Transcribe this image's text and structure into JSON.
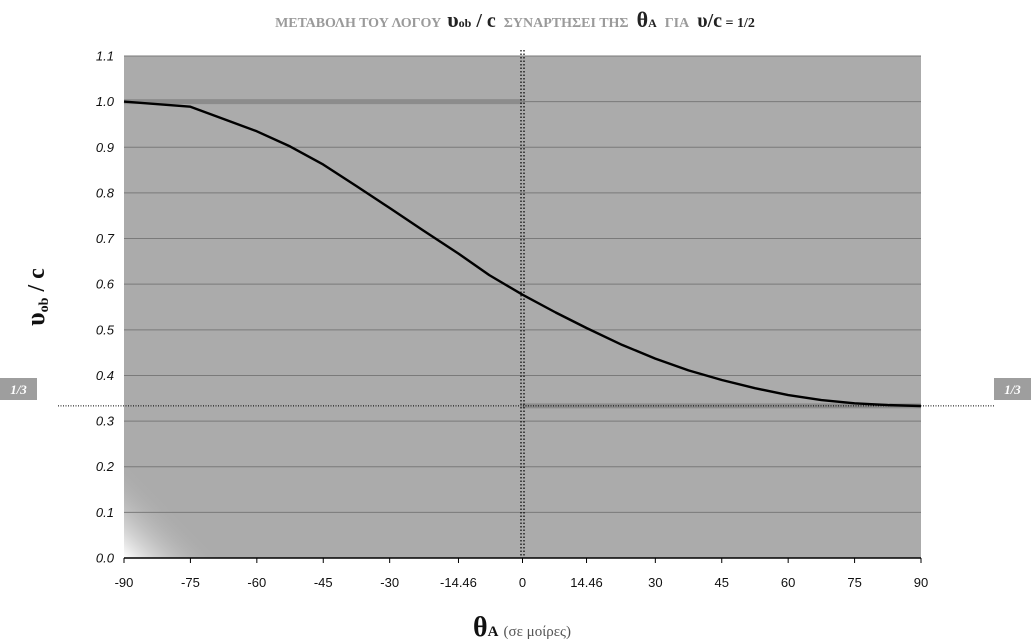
{
  "title": {
    "prefix": "ΜΕΤΑΒΟΛΗ ΤΟΥ ΛΟΓΟΥ",
    "ratio_main": "υ",
    "ratio_sub": "ob",
    "ratio_rest": " / c",
    "middle": "ΣΥΝΑΡΤΗΣΕΙ ΤΗΣ",
    "theta": "θ",
    "theta_sub": "A",
    "for_word": "ΓΙΑ",
    "ratio2": "υ/c",
    "ratio2_value": " = 1/2"
  },
  "y_axis_label": {
    "main": "υ",
    "sub": "ob",
    "rest": " / c"
  },
  "x_axis_label": {
    "theta": "θ",
    "sub": "A",
    "unit": "(σε μοίρες)"
  },
  "markers": {
    "left": "1/3",
    "right": "1/3"
  },
  "colors": {
    "plot_bg": "#ababab",
    "grid": "#7a7a7a",
    "curve": "#000000",
    "asymptote": "#8c8c8c",
    "marker_box": "#9e9e9e"
  },
  "chart_data": {
    "type": "line",
    "title": "ΜΕΤΑΒΟΛΗ ΤΟΥ ΛΟΓΟΥ υob / c ΣΥΝΑΡΤΗΣΕΙ ΤΗΣ θA ΓΙΑ υ/c = 1/2",
    "xlabel": "θA (σε μοίρες)",
    "ylabel": "υob / c",
    "xlim": [
      -90,
      90
    ],
    "ylim": [
      0.0,
      1.1
    ],
    "grid": true,
    "x_ticks": [
      -90,
      -75,
      -60,
      -45,
      -30,
      -14.46,
      0,
      14.46,
      30,
      45,
      60,
      75,
      90
    ],
    "x_tick_labels": [
      "-90",
      "-75",
      "-60",
      "-45",
      "-30",
      "-14.46",
      "0",
      "14.46",
      "30",
      "45",
      "60",
      "75",
      "90"
    ],
    "y_ticks": [
      0.0,
      0.1,
      0.2,
      0.3,
      0.4,
      0.5,
      0.6,
      0.7,
      0.8,
      0.9,
      1.0,
      1.1
    ],
    "y_tick_labels": [
      "0.0",
      "0.1",
      "0.2",
      "0.3",
      "0.4",
      "0.5",
      "0.6",
      "0.7",
      "0.8",
      "0.9",
      "1.0",
      "1.1"
    ],
    "series": [
      {
        "x": [
          -90,
          -75,
          -67.5,
          -60,
          -52.5,
          -45,
          -37.5,
          -30,
          -22.5,
          -14.46,
          -7.5,
          0,
          7.5,
          14.46,
          22.5,
          30,
          37.5,
          45,
          52.5,
          60,
          67.5,
          75,
          82.5,
          90
        ],
        "y": [
          1.0,
          0.989,
          0.962,
          0.935,
          0.902,
          0.862,
          0.815,
          0.767,
          0.718,
          0.667,
          0.62,
          0.577,
          0.538,
          0.504,
          0.467,
          0.437,
          0.411,
          0.39,
          0.372,
          0.357,
          0.346,
          0.339,
          0.335,
          0.333
        ]
      }
    ],
    "reference_lines": [
      {
        "kind": "horizontal",
        "y": 1.0,
        "x_from": -90,
        "x_to": 0
      },
      {
        "kind": "horizontal",
        "y": 0.3333,
        "x_from": 0,
        "x_to": 90
      },
      {
        "kind": "vertical",
        "x": 0,
        "style": "dotted"
      },
      {
        "kind": "horizontal",
        "y": 0.3333,
        "style": "dotted"
      }
    ]
  }
}
